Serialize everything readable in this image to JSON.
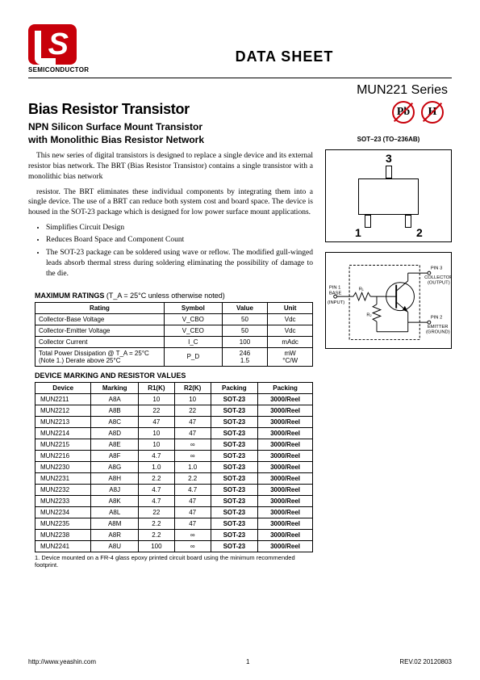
{
  "header": {
    "semiconductor": "SEMICONDUCTOR",
    "datasheet": "DATA SHEET",
    "series": "MUN221 Series"
  },
  "title": {
    "main": "Bias Resistor Transistor",
    "sub1": "NPN Silicon Surface Mount Transistor",
    "sub2": "with Monolithic Bias Resistor Network"
  },
  "paragraphs": {
    "p1": "This new series of digital transistors is designed to replace a single device and its external resistor bias network. The BRT (Bias Resistor Transistor) contains a single transistor with a monolithic bias network",
    "p2": "resistor. The BRT eliminates these individual components by integrating them into a single device. The use of a BRT can reduce both system cost and board space. The device is housed in the SOT-23 package which is designed for low power surface mount applications."
  },
  "bullets": [
    "Simplifies Circuit Design",
    "Reduces Board Space and Component Count",
    "The SOT-23 package can be soldered using wave or reflow. The modified gull-winged leads absorb thermal stress during soldering eliminating the possibility of damage to the die."
  ],
  "compliance": {
    "pb": "Pb",
    "h": "H"
  },
  "package": {
    "label": "SOT–23 (TO–236AB)",
    "pin1": "1",
    "pin2": "2",
    "pin3": "3"
  },
  "schematic": {
    "pin1": "PIN 1",
    "base": "BASE",
    "input": "(INPUT)",
    "pin3": "PIN 3",
    "collector": "COLLECTOR",
    "output": "(OUTPUT)",
    "pin2": "PIN 2",
    "emitter": "EMITTER",
    "ground": "(GROUND)",
    "r1": "R₁",
    "r2": "R₂"
  },
  "maxratings": {
    "title": "MAXIMUM RATINGS",
    "cond": " (T_A = 25°C unless otherwise noted)",
    "headers": [
      "Rating",
      "Symbol",
      "Value",
      "Unit"
    ],
    "rows": [
      [
        "Collector-Base Voltage",
        "V_CBO",
        "50",
        "Vdc"
      ],
      [
        "Collector-Emitter Voltage",
        "V_CEO",
        "50",
        "Vdc"
      ],
      [
        "Collector Current",
        "I_C",
        "100",
        "mAdc"
      ],
      [
        "Total Power Dissipation @ T_A = 25°C\n(Note 1.) Derate above 25°C",
        "P_D",
        "246\n1.5",
        "mW\n°C/W"
      ]
    ]
  },
  "marking": {
    "title": "DEVICE MARKING AND RESISTOR VALUES",
    "headers": [
      "Device",
      "Marking",
      "R1(K)",
      "R2(K)",
      "Packing",
      "Packing"
    ],
    "rows": [
      [
        "MUN2211",
        "A8A",
        "10",
        "10",
        "SOT-23",
        "3000/Reel"
      ],
      [
        "MUN2212",
        "A8B",
        "22",
        "22",
        "SOT-23",
        "3000/Reel"
      ],
      [
        "MUN2213",
        "A8C",
        "47",
        "47",
        "SOT-23",
        "3000/Reel"
      ],
      [
        "MUN2214",
        "A8D",
        "10",
        "47",
        "SOT-23",
        "3000/Reel"
      ],
      [
        "MUN2215",
        "A8E",
        "10",
        "∞",
        "SOT-23",
        "3000/Reel"
      ],
      [
        "MUN2216",
        "A8F",
        "4.7",
        "∞",
        "SOT-23",
        "3000/Reel"
      ],
      [
        "MUN2230",
        "A8G",
        "1.0",
        "1.0",
        "SOT-23",
        "3000/Reel"
      ],
      [
        "MUN2231",
        "A8H",
        "2.2",
        "2.2",
        "SOT-23",
        "3000/Reel"
      ],
      [
        "MUN2232",
        "A8J",
        "4.7",
        "4.7",
        "SOT-23",
        "3000/Reel"
      ],
      [
        "MUN2233",
        "A8K",
        "4.7",
        "47",
        "SOT-23",
        "3000/Reel"
      ],
      [
        "MUN2234",
        "A8L",
        "22",
        "47",
        "SOT-23",
        "3000/Reel"
      ],
      [
        "MUN2235",
        "A8M",
        "2.2",
        "47",
        "SOT-23",
        "3000/Reel"
      ],
      [
        "MUN2238",
        "A8R",
        "2.2",
        "∞",
        "SOT-23",
        "3000/Reel"
      ],
      [
        "MUN2241",
        "A8U",
        "100",
        "∞",
        "SOT-23",
        "3000/Reel"
      ]
    ]
  },
  "footnote": "1. Device mounted on a FR-4 glass epoxy printed circuit board using the minimum recommended footprint.",
  "footer": {
    "url": "http://www.yeashin.com",
    "page": "1",
    "rev": "REV.02 20120803"
  }
}
